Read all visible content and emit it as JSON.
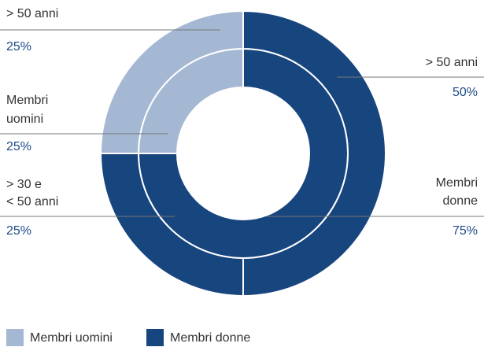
{
  "chart_data": {
    "type": "donut",
    "rings": {
      "inner": [
        {
          "label": [
            "Membri",
            "donne"
          ],
          "value": 75,
          "value_label": "75%",
          "color": "#17457e"
        },
        {
          "label": [
            "Membri",
            "uomini"
          ],
          "value": 25,
          "value_label": "25%",
          "color": "#a5b8d3"
        }
      ],
      "outer": [
        {
          "label": [
            "> 50 anni"
          ],
          "value": 50,
          "value_label": "50%",
          "color": "#17457e"
        },
        {
          "label": [
            "> 30 e",
            "< 50 anni"
          ],
          "value": 25,
          "value_label": "25%",
          "color": "#17457e"
        },
        {
          "label": [
            "> 50 anni"
          ],
          "value": 25,
          "value_label": "25%",
          "color": "#a5b8d3"
        }
      ]
    },
    "legend": [
      {
        "name": "Membri uomini",
        "color": "#a5b8d3"
      },
      {
        "name": "Membri donne",
        "color": "#17457e"
      }
    ]
  }
}
